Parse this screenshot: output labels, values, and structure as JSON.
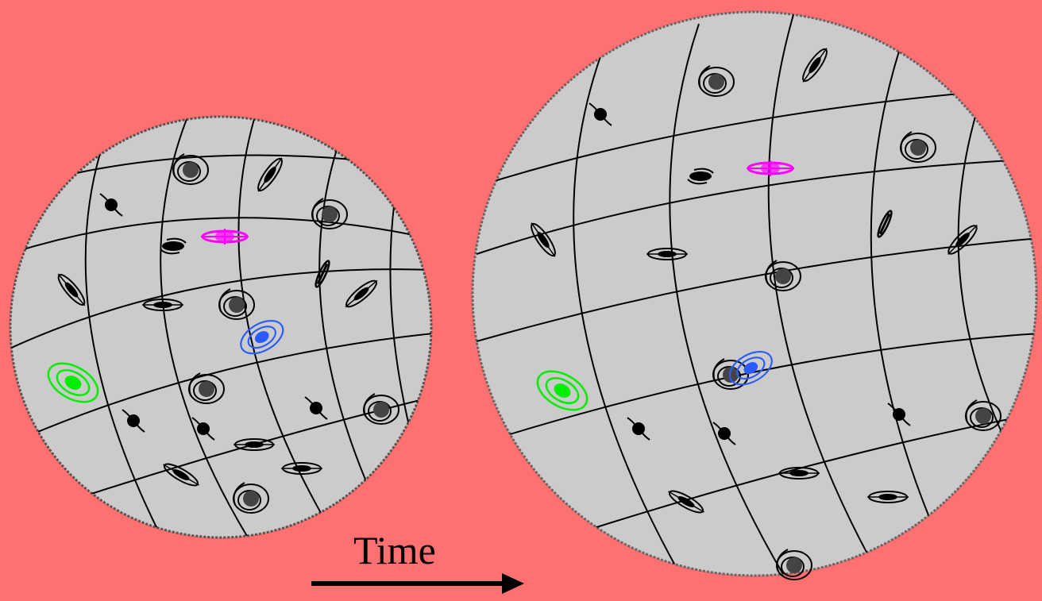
{
  "caption": "Time",
  "colors": {
    "background": "#ff7070",
    "sphere": "#cbcbcb",
    "grid": "#000000",
    "galaxy_dark": "#404040",
    "galaxy_green": "#00ee00",
    "galaxy_blue": "#2a5bff",
    "galaxy_magenta": "#ff00ff"
  },
  "icons": [
    "spiral-galaxy-icon",
    "edge-on-galaxy-icon",
    "barred-galaxy-icon",
    "time-arrow-icon"
  ]
}
